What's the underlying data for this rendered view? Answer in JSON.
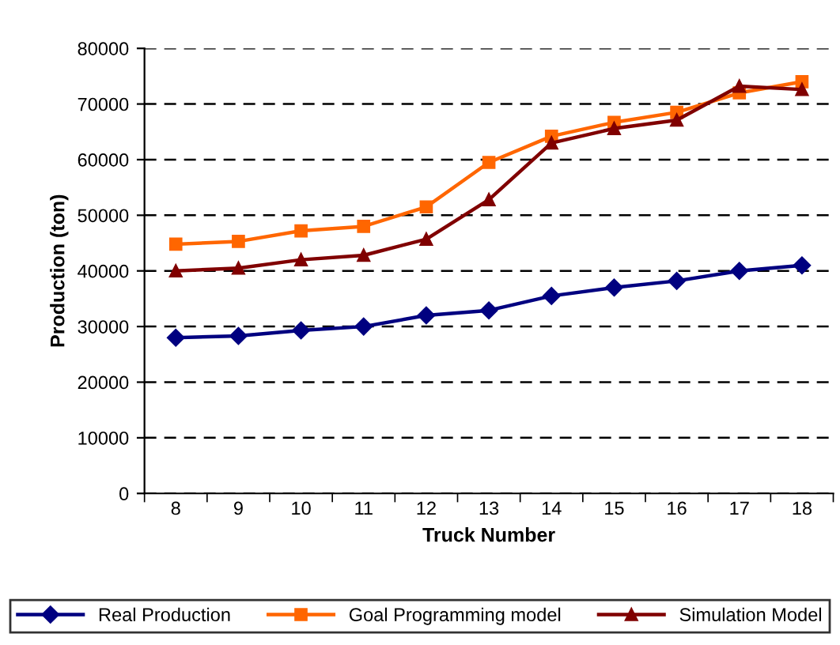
{
  "chart_data": {
    "type": "line",
    "xlabel": "Truck Number",
    "ylabel": "Production (ton)",
    "categories": [
      "8",
      "9",
      "10",
      "11",
      "12",
      "13",
      "14",
      "15",
      "16",
      "17",
      "18"
    ],
    "series": [
      {
        "name": "Real Production",
        "color": "#000080",
        "marker": "diamond",
        "values": [
          28000,
          28300,
          29300,
          30000,
          32000,
          32900,
          35500,
          37000,
          38200,
          40000,
          41000
        ]
      },
      {
        "name": "Goal Programming model",
        "color": "#ff6600",
        "marker": "square",
        "values": [
          44800,
          45300,
          47200,
          48000,
          51500,
          59500,
          64200,
          66700,
          68500,
          72000,
          74000
        ]
      },
      {
        "name": "Simulation Model",
        "color": "#800000",
        "marker": "triangle",
        "values": [
          40000,
          40500,
          42000,
          42800,
          45700,
          52800,
          63000,
          65600,
          67100,
          73200,
          72600
        ]
      }
    ],
    "ylim": [
      0,
      80000
    ],
    "yticks": [
      0,
      10000,
      20000,
      30000,
      40000,
      50000,
      60000,
      70000,
      80000
    ],
    "grid": "y",
    "legend": "bottom",
    "line_style": "solid"
  }
}
